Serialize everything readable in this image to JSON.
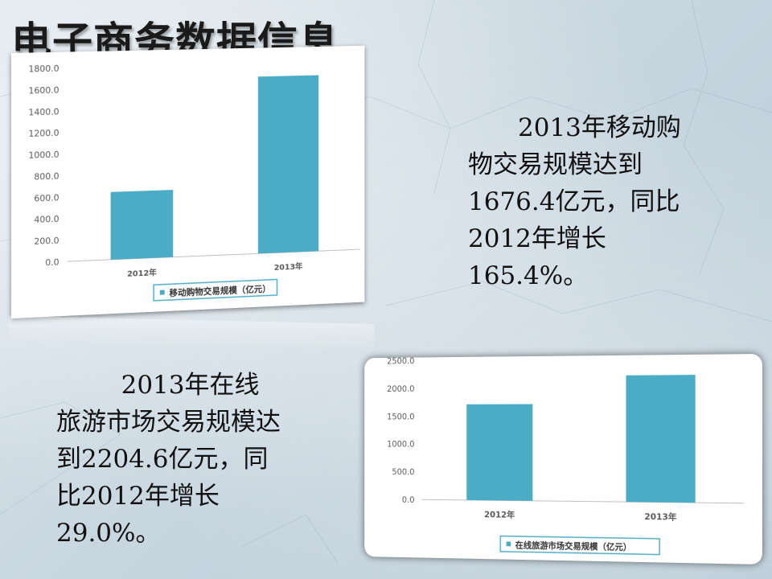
{
  "slide": {
    "title": "电子商务数据信息",
    "paragraphs": [
      "2013年移动购物交易规模达到1676.4亿元，同比2012年增长165.4%。",
      "2013年在线旅游市场交易规模达到2204.6亿元，同比2012年增长29.0%。"
    ]
  },
  "chart_data": [
    {
      "type": "bar",
      "categories": [
        "2012年",
        "2013年"
      ],
      "series": [
        {
          "name": "移动购物交易规模（亿元）",
          "values": [
            631.5,
            1676.4
          ]
        }
      ],
      "ylim": [
        0,
        1800
      ],
      "yticks": [
        "0.0",
        "200.0",
        "400.0",
        "600.0",
        "800.0",
        "1000.0",
        "1200.0",
        "1400.0",
        "1600.0",
        "1800.0"
      ],
      "tick_values": [
        0,
        200,
        400,
        600,
        800,
        1000,
        1200,
        1400,
        1600,
        1800
      ],
      "legend": "bottom",
      "bar_color": "#4bacc6"
    },
    {
      "type": "bar",
      "categories": [
        "2012年",
        "2013年"
      ],
      "series": [
        {
          "name": "在线旅游市场交易规模（亿元）",
          "values": [
            1709.0,
            2204.6
          ]
        }
      ],
      "ylim": [
        0,
        2500
      ],
      "yticks": [
        "0.0",
        "500.0",
        "1000.0",
        "1500.0",
        "2000.0",
        "2500.0"
      ],
      "tick_values": [
        0,
        500,
        1000,
        1500,
        2000,
        2500
      ],
      "legend": "bottom",
      "bar_color": "#4bacc6"
    }
  ]
}
